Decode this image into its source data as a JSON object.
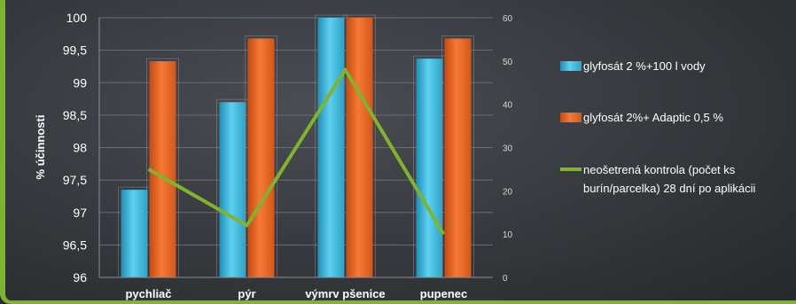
{
  "chart_data": {
    "type": "bar",
    "categories": [
      "pychliač",
      "pýr",
      "výmrv pšenice",
      "pupenec"
    ],
    "ylabel": "%  účinnosti",
    "ylim": [
      96,
      100
    ],
    "yticks": [
      "100",
      "99,5",
      "99",
      "98,5",
      "98",
      "97,5",
      "97",
      "96,5",
      "96"
    ],
    "y2lim": [
      0,
      60
    ],
    "y2ticks": [
      "60",
      "50",
      "40",
      "30",
      "20",
      "10",
      "0"
    ],
    "series": [
      {
        "name": "glyfosát  2 %+100 l vody",
        "type": "bar",
        "axis": "left",
        "color": "#35b6dc",
        "values": [
          97.35,
          98.7,
          100,
          99.37
        ]
      },
      {
        "name": "glyfosát 2%+ Adaptic  0,5 %",
        "type": "bar",
        "axis": "left",
        "color": "#e8611f",
        "values": [
          99.33,
          99.68,
          100,
          99.68
        ]
      },
      {
        "name": "neošetrená kontrola (počet ks burín/parcelka) 28 dní po aplikácii",
        "legend_lines": [
          "neošetrená kontrola (počet ks",
          "burín/parcelka) 28 dní po aplikácii"
        ],
        "type": "line",
        "axis": "right",
        "color": "#7fb52d",
        "values": [
          25,
          12,
          48,
          10
        ]
      }
    ],
    "legend_position": "right",
    "grid": true
  }
}
